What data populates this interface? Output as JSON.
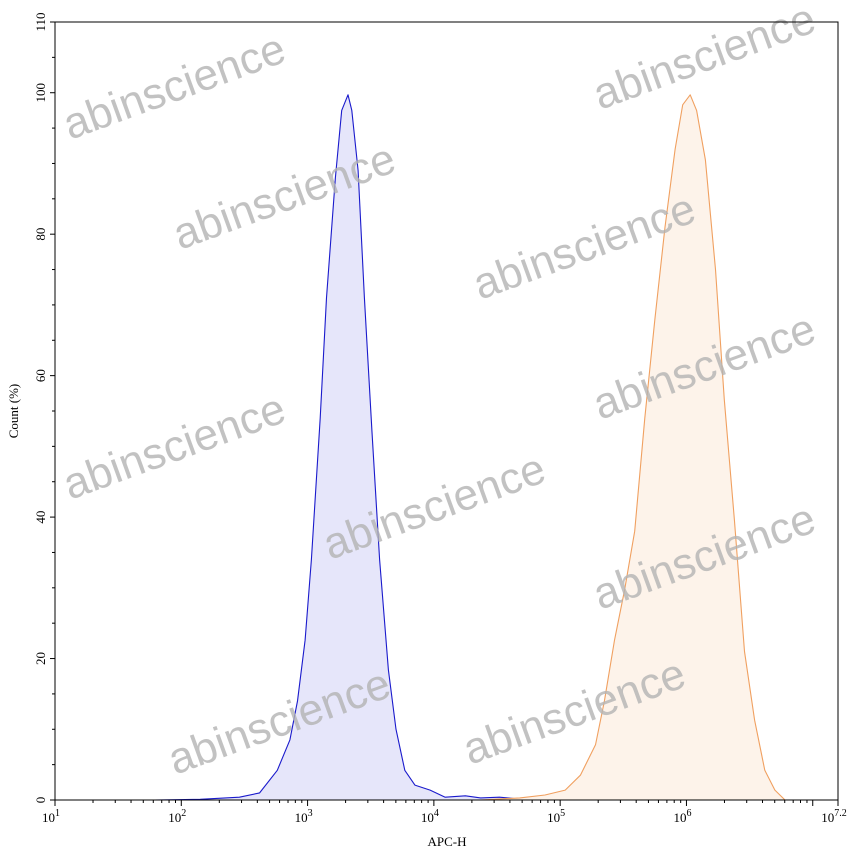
{
  "chart_data": {
    "type": "area",
    "title": "",
    "xlabel": "APC-H",
    "ylabel": "Count (%)",
    "xscale": "log",
    "xlim_log10": [
      1,
      7.2
    ],
    "ylim": [
      0,
      110
    ],
    "x_tick_labels": [
      {
        "base": "10",
        "exp": "1"
      },
      {
        "base": "10",
        "exp": "2"
      },
      {
        "base": "10",
        "exp": "3"
      },
      {
        "base": "10",
        "exp": "4"
      },
      {
        "base": "10",
        "exp": "5"
      },
      {
        "base": "10",
        "exp": "6"
      },
      {
        "base": "10",
        "exp": "7.2"
      }
    ],
    "y_tick_labels": [
      "0",
      "20",
      "40",
      "60",
      "80",
      "100",
      "110"
    ],
    "grid": false,
    "series": [
      {
        "color": "#1a1acc",
        "fill": "#e6e6fa",
        "log10_x": [
          1.79,
          2.15,
          2.46,
          2.62,
          2.76,
          2.86,
          2.92,
          2.98,
          3.03,
          3.1,
          3.15,
          3.22,
          3.27,
          3.32,
          3.35,
          3.4,
          3.45,
          3.51,
          3.57,
          3.64,
          3.7,
          3.77,
          3.85,
          3.97,
          4.09,
          4.25,
          4.37,
          4.52,
          4.76
        ],
        "y": [
          0,
          0.1,
          0.4,
          1,
          4.2,
          8.5,
          14,
          22.6,
          34,
          54,
          71,
          88,
          97.5,
          99.7,
          97.5,
          89,
          71,
          52,
          34,
          18.4,
          10,
          4.2,
          2.1,
          1.4,
          0.4,
          0.6,
          0.3,
          0.4,
          0
        ]
      },
      {
        "color": "#f0a060",
        "fill": "#fdf3ea",
        "log10_x": [
          4.37,
          4.68,
          4.88,
          5.04,
          5.16,
          5.28,
          5.35,
          5.43,
          5.51,
          5.59,
          5.67,
          5.75,
          5.83,
          5.91,
          5.97,
          6.03,
          6.08,
          6.15,
          6.23,
          6.3,
          6.38,
          6.46,
          6.54,
          6.62,
          6.7,
          6.78
        ],
        "y": [
          0,
          0.3,
          0.7,
          1.4,
          3.5,
          7.8,
          14,
          22.6,
          29.7,
          38,
          54,
          68,
          81,
          92,
          98.3,
          99.7,
          97.5,
          90.5,
          75,
          56.6,
          39.6,
          21,
          11.3,
          4.2,
          1.4,
          0
        ]
      }
    ]
  },
  "watermark": "abinscience"
}
